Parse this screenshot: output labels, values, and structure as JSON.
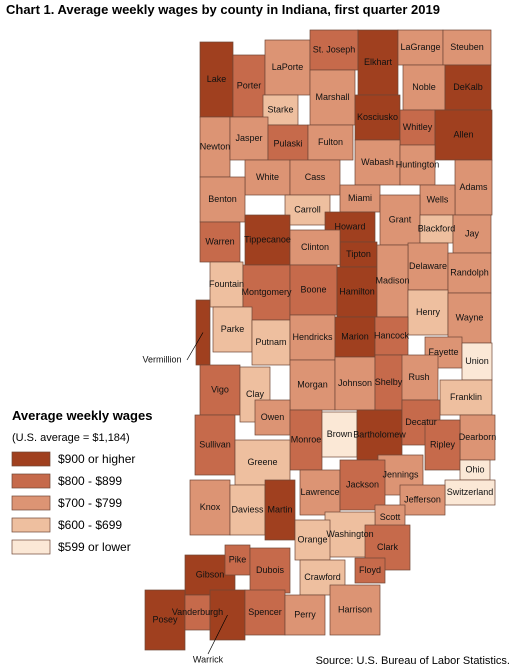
{
  "title": "Chart 1. Average weekly wages by county in Indiana, first quarter 2019",
  "source": "Source: U.S. Bureau of Labor Statistics.",
  "legend": {
    "title": "Average weekly wages",
    "subtitle": "(U.S. average = $1,184)",
    "classes": [
      {
        "label": "$900 or higher",
        "color": "#a0401f"
      },
      {
        "label": "$800 - $899",
        "color": "#c66a4b"
      },
      {
        "label": "$700 - $799",
        "color": "#dc9474"
      },
      {
        "label": "$600 - $699",
        "color": "#eebf9f"
      },
      {
        "label": "$599 or lower",
        "color": "#fbe8d6"
      }
    ]
  },
  "counties": [
    {
      "name": "Lake",
      "class": 0
    },
    {
      "name": "Porter",
      "class": 1
    },
    {
      "name": "LaPorte",
      "class": 2
    },
    {
      "name": "St. Joseph",
      "class": 1
    },
    {
      "name": "Elkhart",
      "class": 0
    },
    {
      "name": "LaGrange",
      "class": 2
    },
    {
      "name": "Steuben",
      "class": 2
    },
    {
      "name": "Noble",
      "class": 2
    },
    {
      "name": "DeKalb",
      "class": 0
    },
    {
      "name": "Starke",
      "class": 3
    },
    {
      "name": "Marshall",
      "class": 2
    },
    {
      "name": "Kosciusko",
      "class": 0
    },
    {
      "name": "Whitley",
      "class": 1
    },
    {
      "name": "Allen",
      "class": 0
    },
    {
      "name": "Newton",
      "class": 2
    },
    {
      "name": "Jasper",
      "class": 2
    },
    {
      "name": "Pulaski",
      "class": 1
    },
    {
      "name": "Fulton",
      "class": 2
    },
    {
      "name": "Wabash",
      "class": 2
    },
    {
      "name": "Huntington",
      "class": 2
    },
    {
      "name": "White",
      "class": 2
    },
    {
      "name": "Cass",
      "class": 2
    },
    {
      "name": "Miami",
      "class": 2
    },
    {
      "name": "Adams",
      "class": 2
    },
    {
      "name": "Wells",
      "class": 2
    },
    {
      "name": "Benton",
      "class": 2
    },
    {
      "name": "Carroll",
      "class": 3
    },
    {
      "name": "Howard",
      "class": 0
    },
    {
      "name": "Grant",
      "class": 2
    },
    {
      "name": "Blackford",
      "class": 3
    },
    {
      "name": "Jay",
      "class": 2
    },
    {
      "name": "Warren",
      "class": 1
    },
    {
      "name": "Tippecanoe",
      "class": 0
    },
    {
      "name": "Tipton",
      "class": 0
    },
    {
      "name": "Clinton",
      "class": 2
    },
    {
      "name": "Delaware",
      "class": 2
    },
    {
      "name": "Randolph",
      "class": 2
    },
    {
      "name": "Fountain",
      "class": 3
    },
    {
      "name": "Montgomery",
      "class": 1
    },
    {
      "name": "Boone",
      "class": 1
    },
    {
      "name": "Hamilton",
      "class": 0
    },
    {
      "name": "Madison",
      "class": 2
    },
    {
      "name": "Henry",
      "class": 3
    },
    {
      "name": "Wayne",
      "class": 2
    },
    {
      "name": "Vermillion",
      "class": 0
    },
    {
      "name": "Parke",
      "class": 3
    },
    {
      "name": "Putnam",
      "class": 3
    },
    {
      "name": "Hendricks",
      "class": 2
    },
    {
      "name": "Marion",
      "class": 0
    },
    {
      "name": "Hancock",
      "class": 1
    },
    {
      "name": "Fayette",
      "class": 2
    },
    {
      "name": "Union",
      "class": 4
    },
    {
      "name": "Rush",
      "class": 2
    },
    {
      "name": "Vigo",
      "class": 1
    },
    {
      "name": "Clay",
      "class": 3
    },
    {
      "name": "Morgan",
      "class": 2
    },
    {
      "name": "Johnson",
      "class": 2
    },
    {
      "name": "Shelby",
      "class": 1
    },
    {
      "name": "Franklin",
      "class": 3
    },
    {
      "name": "Owen",
      "class": 2
    },
    {
      "name": "Monroe",
      "class": 1
    },
    {
      "name": "Brown",
      "class": 4
    },
    {
      "name": "Bartholomew",
      "class": 0
    },
    {
      "name": "Decatur",
      "class": 1
    },
    {
      "name": "Dearborn",
      "class": 2
    },
    {
      "name": "Ripley",
      "class": 1
    },
    {
      "name": "Sullivan",
      "class": 1
    },
    {
      "name": "Greene",
      "class": 3
    },
    {
      "name": "Jennings",
      "class": 2
    },
    {
      "name": "Ohio",
      "class": 4
    },
    {
      "name": "Lawrence",
      "class": 2
    },
    {
      "name": "Jackson",
      "class": 1
    },
    {
      "name": "Switzerland",
      "class": 4
    },
    {
      "name": "Jefferson",
      "class": 2
    },
    {
      "name": "Knox",
      "class": 2
    },
    {
      "name": "Daviess",
      "class": 3
    },
    {
      "name": "Martin",
      "class": 0
    },
    {
      "name": "Scott",
      "class": 2
    },
    {
      "name": "Washington",
      "class": 3
    },
    {
      "name": "Orange",
      "class": 3
    },
    {
      "name": "Clark",
      "class": 1
    },
    {
      "name": "Gibson",
      "class": 0
    },
    {
      "name": "Pike",
      "class": 1
    },
    {
      "name": "Dubois",
      "class": 1
    },
    {
      "name": "Crawford",
      "class": 3
    },
    {
      "name": "Floyd",
      "class": 1
    },
    {
      "name": "Harrison",
      "class": 2
    },
    {
      "name": "Posey",
      "class": 0
    },
    {
      "name": "Vanderburgh",
      "class": 1
    },
    {
      "name": "Warrick",
      "class": 0
    },
    {
      "name": "Spencer",
      "class": 1
    },
    {
      "name": "Perry",
      "class": 2
    }
  ]
}
